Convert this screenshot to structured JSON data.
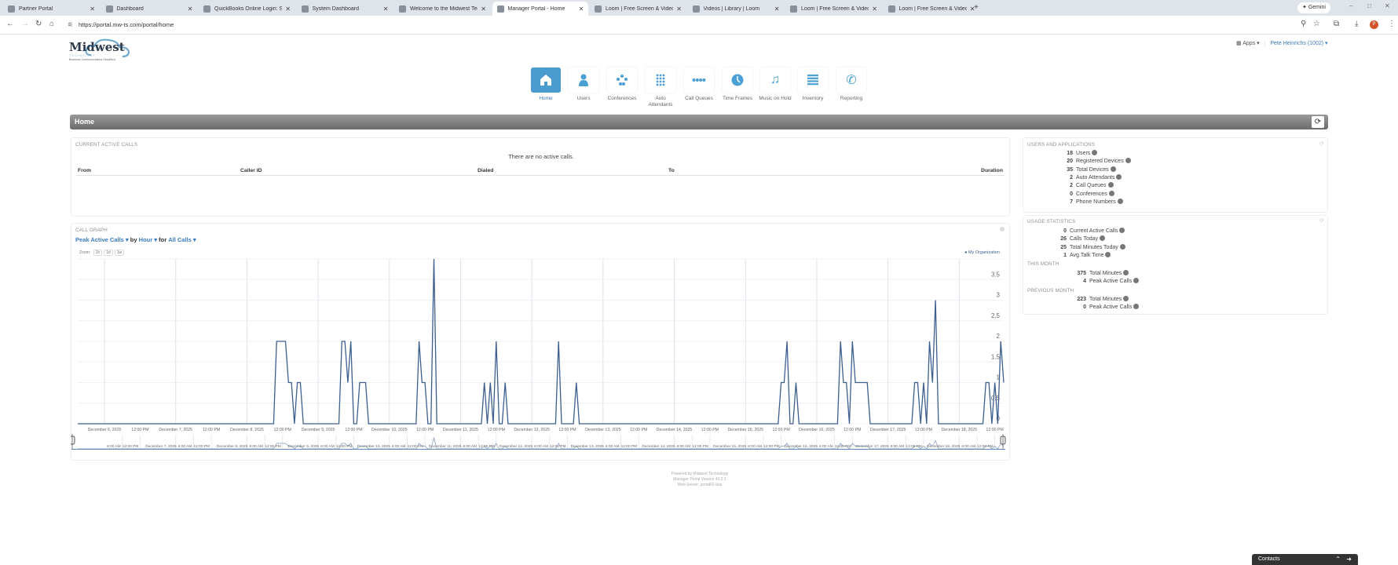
{
  "browser": {
    "tabs": [
      {
        "title": "Partner Portal"
      },
      {
        "title": "Dashboard"
      },
      {
        "title": "QuickBooks Online Login: Sign"
      },
      {
        "title": "System Dashboard"
      },
      {
        "title": "Welcome to the Midwest Techn"
      },
      {
        "title": "Manager Portal - Home",
        "active": true
      },
      {
        "title": "Loom | Free Screen & Video Re"
      },
      {
        "title": "Videos | Library | Loom"
      },
      {
        "title": "Loom | Free Screen & Video"
      },
      {
        "title": "Loom | Free Screen & Video"
      }
    ],
    "url": "https://portal.mw-ts.com/portal/home",
    "gemini_label": "Gemini",
    "profile_initial": "P"
  },
  "header": {
    "logo_name": "Midwest",
    "logo_sub": "TECHNOLOGY",
    "logo_tagline": "Business Communications Simplified",
    "apps_label": "Apps",
    "user_label": "Pete Heinrichs (1002)"
  },
  "nav": [
    {
      "label": "Home",
      "icon": "home-icon",
      "active": true
    },
    {
      "label": "Users",
      "icon": "user-icon"
    },
    {
      "label": "Conferences",
      "icon": "conference-icon"
    },
    {
      "label": "Auto Attendants",
      "icon": "keypad-icon"
    },
    {
      "label": "Call Queues",
      "icon": "queue-icon"
    },
    {
      "label": "Time Frames",
      "icon": "clock-icon"
    },
    {
      "label": "Music on Hold",
      "icon": "music-icon"
    },
    {
      "label": "Inventory",
      "icon": "list-icon"
    },
    {
      "label": "Reporting",
      "icon": "phone-icon"
    }
  ],
  "page_title": "Home",
  "active_calls": {
    "title": "CURRENT ACTIVE CALLS",
    "empty": "There are no active calls.",
    "columns": [
      "From",
      "Caller ID",
      "Dialed",
      "To",
      "Duration"
    ]
  },
  "call_graph": {
    "title": "CALL GRAPH",
    "metric": "Peak Active Calls",
    "by": "by",
    "period": "Hour",
    "for": "for",
    "filter": "All Calls",
    "zoom_label": "Zoom:",
    "zoom_options": [
      "1h",
      "1d",
      "1w"
    ]
  },
  "users_apps": {
    "title": "USERS AND APPLICATIONS",
    "rows": [
      {
        "n": "18",
        "label": "Users"
      },
      {
        "n": "20",
        "label": "Registered Devices"
      },
      {
        "n": "35",
        "label": "Total Devices"
      },
      {
        "n": "2",
        "label": "Auto Attendants"
      },
      {
        "n": "2",
        "label": "Call Queues"
      },
      {
        "n": "0",
        "label": "Conferences"
      },
      {
        "n": "7",
        "label": "Phone Numbers"
      }
    ]
  },
  "usage": {
    "title": "USAGE STATISTICS",
    "rows": [
      {
        "n": "0",
        "label": "Current Active Calls"
      },
      {
        "n": "26",
        "label": "Calls Today"
      },
      {
        "n": "25",
        "label": "Total Minutes Today"
      },
      {
        "n": "1",
        "label": "Avg.Talk Time"
      }
    ],
    "this_month_title": "THIS MONTH",
    "this_month": [
      {
        "n": "375",
        "label": "Total Minutes"
      },
      {
        "n": "4",
        "label": "Peak Active Calls"
      }
    ],
    "prev_month_title": "PREVIOUS MONTH",
    "prev_month": [
      {
        "n": "223",
        "label": "Total Minutes"
      },
      {
        "n": "0",
        "label": "Peak Active Calls"
      }
    ]
  },
  "footer": [
    "Powered by Midwest Technology",
    "Manager Portal Version 43.2.1",
    "Web Server: portal02-bas"
  ],
  "contacts_label": "Contacts",
  "chart_data": {
    "type": "line",
    "interval": "hour",
    "x_range": [
      "2025-12-05 15:00",
      "2025-12-18 15:00"
    ],
    "ylim": [
      0,
      4
    ],
    "y_ticks": [
      "0",
      "0.5",
      "1",
      "1.5",
      "2",
      "2.5",
      "3",
      "3.5"
    ],
    "grid": true,
    "legend": "top-right",
    "color": "#3d5f8f",
    "series": [
      {
        "name": "My Organization",
        "default": 0,
        "points": [
          [
            "2025-12-08 10:00",
            2
          ],
          [
            "2025-12-08 11:00",
            2
          ],
          [
            "2025-12-08 12:00",
            2
          ],
          [
            "2025-12-08 13:00",
            2
          ],
          [
            "2025-12-08 14:00",
            1
          ],
          [
            "2025-12-08 15:00",
            1
          ],
          [
            "2025-12-08 17:00",
            1
          ],
          [
            "2025-12-08 18:00",
            1
          ],
          [
            "2025-12-09 08:00",
            2
          ],
          [
            "2025-12-09 09:00",
            2
          ],
          [
            "2025-12-09 10:00",
            1
          ],
          [
            "2025-12-09 11:00",
            2
          ],
          [
            "2025-12-09 14:00",
            1
          ],
          [
            "2025-12-09 15:00",
            1
          ],
          [
            "2025-12-09 16:00",
            1
          ],
          [
            "2025-12-10 10:00",
            2
          ],
          [
            "2025-12-10 11:00",
            1
          ],
          [
            "2025-12-10 12:00",
            1
          ],
          [
            "2025-12-10 15:00",
            4
          ],
          [
            "2025-12-11 08:00",
            1
          ],
          [
            "2025-12-11 10:00",
            1
          ],
          [
            "2025-12-11 12:00",
            2
          ],
          [
            "2025-12-11 15:00",
            1
          ],
          [
            "2025-12-12 09:00",
            2
          ],
          [
            "2025-12-12 15:00",
            1
          ],
          [
            "2025-12-15 12:00",
            1
          ],
          [
            "2025-12-15 13:00",
            1
          ],
          [
            "2025-12-15 14:00",
            2
          ],
          [
            "2025-12-15 17:00",
            1
          ],
          [
            "2025-12-16 08:00",
            2
          ],
          [
            "2025-12-16 09:00",
            1
          ],
          [
            "2025-12-16 10:00",
            1
          ],
          [
            "2025-12-16 12:00",
            2
          ],
          [
            "2025-12-16 13:00",
            1
          ],
          [
            "2025-12-16 14:00",
            1
          ],
          [
            "2025-12-16 15:00",
            1
          ],
          [
            "2025-12-16 16:00",
            1
          ],
          [
            "2025-12-16 17:00",
            1
          ],
          [
            "2025-12-17 09:00",
            1
          ],
          [
            "2025-12-17 10:00",
            1
          ],
          [
            "2025-12-17 12:00",
            1
          ],
          [
            "2025-12-17 14:00",
            2
          ],
          [
            "2025-12-17 15:00",
            1
          ],
          [
            "2025-12-17 16:00",
            3
          ],
          [
            "2025-12-18 09:00",
            1
          ],
          [
            "2025-12-18 10:00",
            1
          ],
          [
            "2025-12-18 12:00",
            1
          ],
          [
            "2025-12-18 14:00",
            2
          ],
          [
            "2025-12-18 15:00",
            1
          ]
        ]
      }
    ],
    "x_ticks": [
      [
        "2025-12-06 00:00",
        "December 6, 2025"
      ],
      [
        "2025-12-06 12:00",
        "12:00 PM"
      ],
      [
        "2025-12-07 00:00",
        "December 7, 2025"
      ],
      [
        "2025-12-07 12:00",
        "12:00 PM"
      ],
      [
        "2025-12-08 00:00",
        "December 8, 2025"
      ],
      [
        "2025-12-08 12:00",
        "12:00 PM"
      ],
      [
        "2025-12-09 00:00",
        "December 9, 2025"
      ],
      [
        "2025-12-09 12:00",
        "12:00 PM"
      ],
      [
        "2025-12-10 00:00",
        "December 10, 2025"
      ],
      [
        "2025-12-10 12:00",
        "12:00 PM"
      ],
      [
        "2025-12-11 00:00",
        "December 11, 2025"
      ],
      [
        "2025-12-11 12:00",
        "12:00 PM"
      ],
      [
        "2025-12-12 00:00",
        "December 12, 2025"
      ],
      [
        "2025-12-12 12:00",
        "12:00 PM"
      ],
      [
        "2025-12-13 00:00",
        "December 13, 2025"
      ],
      [
        "2025-12-13 12:00",
        "12:00 PM"
      ],
      [
        "2025-12-14 00:00",
        "December 14, 2025"
      ],
      [
        "2025-12-14 12:00",
        "12:00 PM"
      ],
      [
        "2025-12-15 00:00",
        "December 15, 2025"
      ],
      [
        "2025-12-15 12:00",
        "12:00 PM"
      ],
      [
        "2025-12-16 00:00",
        "December 16, 2025"
      ],
      [
        "2025-12-16 12:00",
        "12:00 PM"
      ],
      [
        "2025-12-17 00:00",
        "December 17, 2025"
      ],
      [
        "2025-12-17 12:00",
        "12:00 PM"
      ],
      [
        "2025-12-18 00:00",
        "December 18, 2025"
      ],
      [
        "2025-12-18 12:00",
        "12:00 PM"
      ]
    ],
    "navigator_ticks": [
      [
        "2025-12-06 06:00",
        "6:00 AM"
      ],
      [
        "2025-12-06 12:00",
        "12:00 PM"
      ],
      [
        "2025-12-07 00:00",
        "December 7, 2025"
      ],
      [
        "2025-12-07 06:00",
        "6:00 AM"
      ],
      [
        "2025-12-07 12:00",
        "12:00 PM"
      ],
      [
        "2025-12-08 00:00",
        "December 8, 2025"
      ],
      [
        "2025-12-08 06:00",
        "6:00 AM"
      ],
      [
        "2025-12-08 12:00",
        "12:00 PM"
      ],
      [
        "2025-12-09 00:00",
        "December 9, 2025"
      ],
      [
        "2025-12-09 06:00",
        "6:00 AM"
      ],
      [
        "2025-12-09 12:00",
        "12:00 PM"
      ],
      [
        "2025-12-10 00:00",
        "December 10, 2025"
      ],
      [
        "2025-12-10 06:00",
        "6:00 AM"
      ],
      [
        "2025-12-10 12:00",
        "12:00 PM"
      ],
      [
        "2025-12-11 00:00",
        "December 11, 2025"
      ],
      [
        "2025-12-11 06:00",
        "6:00 AM"
      ],
      [
        "2025-12-11 12:00",
        "12:00 PM"
      ],
      [
        "2025-12-12 00:00",
        "December 12, 2025"
      ],
      [
        "2025-12-12 06:00",
        "6:00 AM"
      ],
      [
        "2025-12-12 12:00",
        "12:00 PM"
      ],
      [
        "2025-12-13 00:00",
        "December 13, 2025"
      ],
      [
        "2025-12-13 06:00",
        "6:00 AM"
      ],
      [
        "2025-12-13 12:00",
        "12:00 PM"
      ],
      [
        "2025-12-14 00:00",
        "December 14, 2025"
      ],
      [
        "2025-12-14 06:00",
        "6:00 AM"
      ],
      [
        "2025-12-14 12:00",
        "12:00 PM"
      ],
      [
        "2025-12-15 00:00",
        "December 15, 2025"
      ],
      [
        "2025-12-15 06:00",
        "6:00 AM"
      ],
      [
        "2025-12-15 12:00",
        "12:00 PM"
      ],
      [
        "2025-12-16 00:00",
        "December 16, 2025"
      ],
      [
        "2025-12-16 06:00",
        "6:00 AM"
      ],
      [
        "2025-12-16 12:00",
        "12:00 PM"
      ],
      [
        "2025-12-17 00:00",
        "December 17, 2025"
      ],
      [
        "2025-12-17 06:00",
        "6:00 AM"
      ],
      [
        "2025-12-17 12:00",
        "12:00 PM"
      ],
      [
        "2025-12-18 00:00",
        "December 18, 2025"
      ],
      [
        "2025-12-18 06:00",
        "6:00 AM"
      ],
      [
        "2025-12-18 12:00",
        "12:00 PM"
      ]
    ]
  }
}
